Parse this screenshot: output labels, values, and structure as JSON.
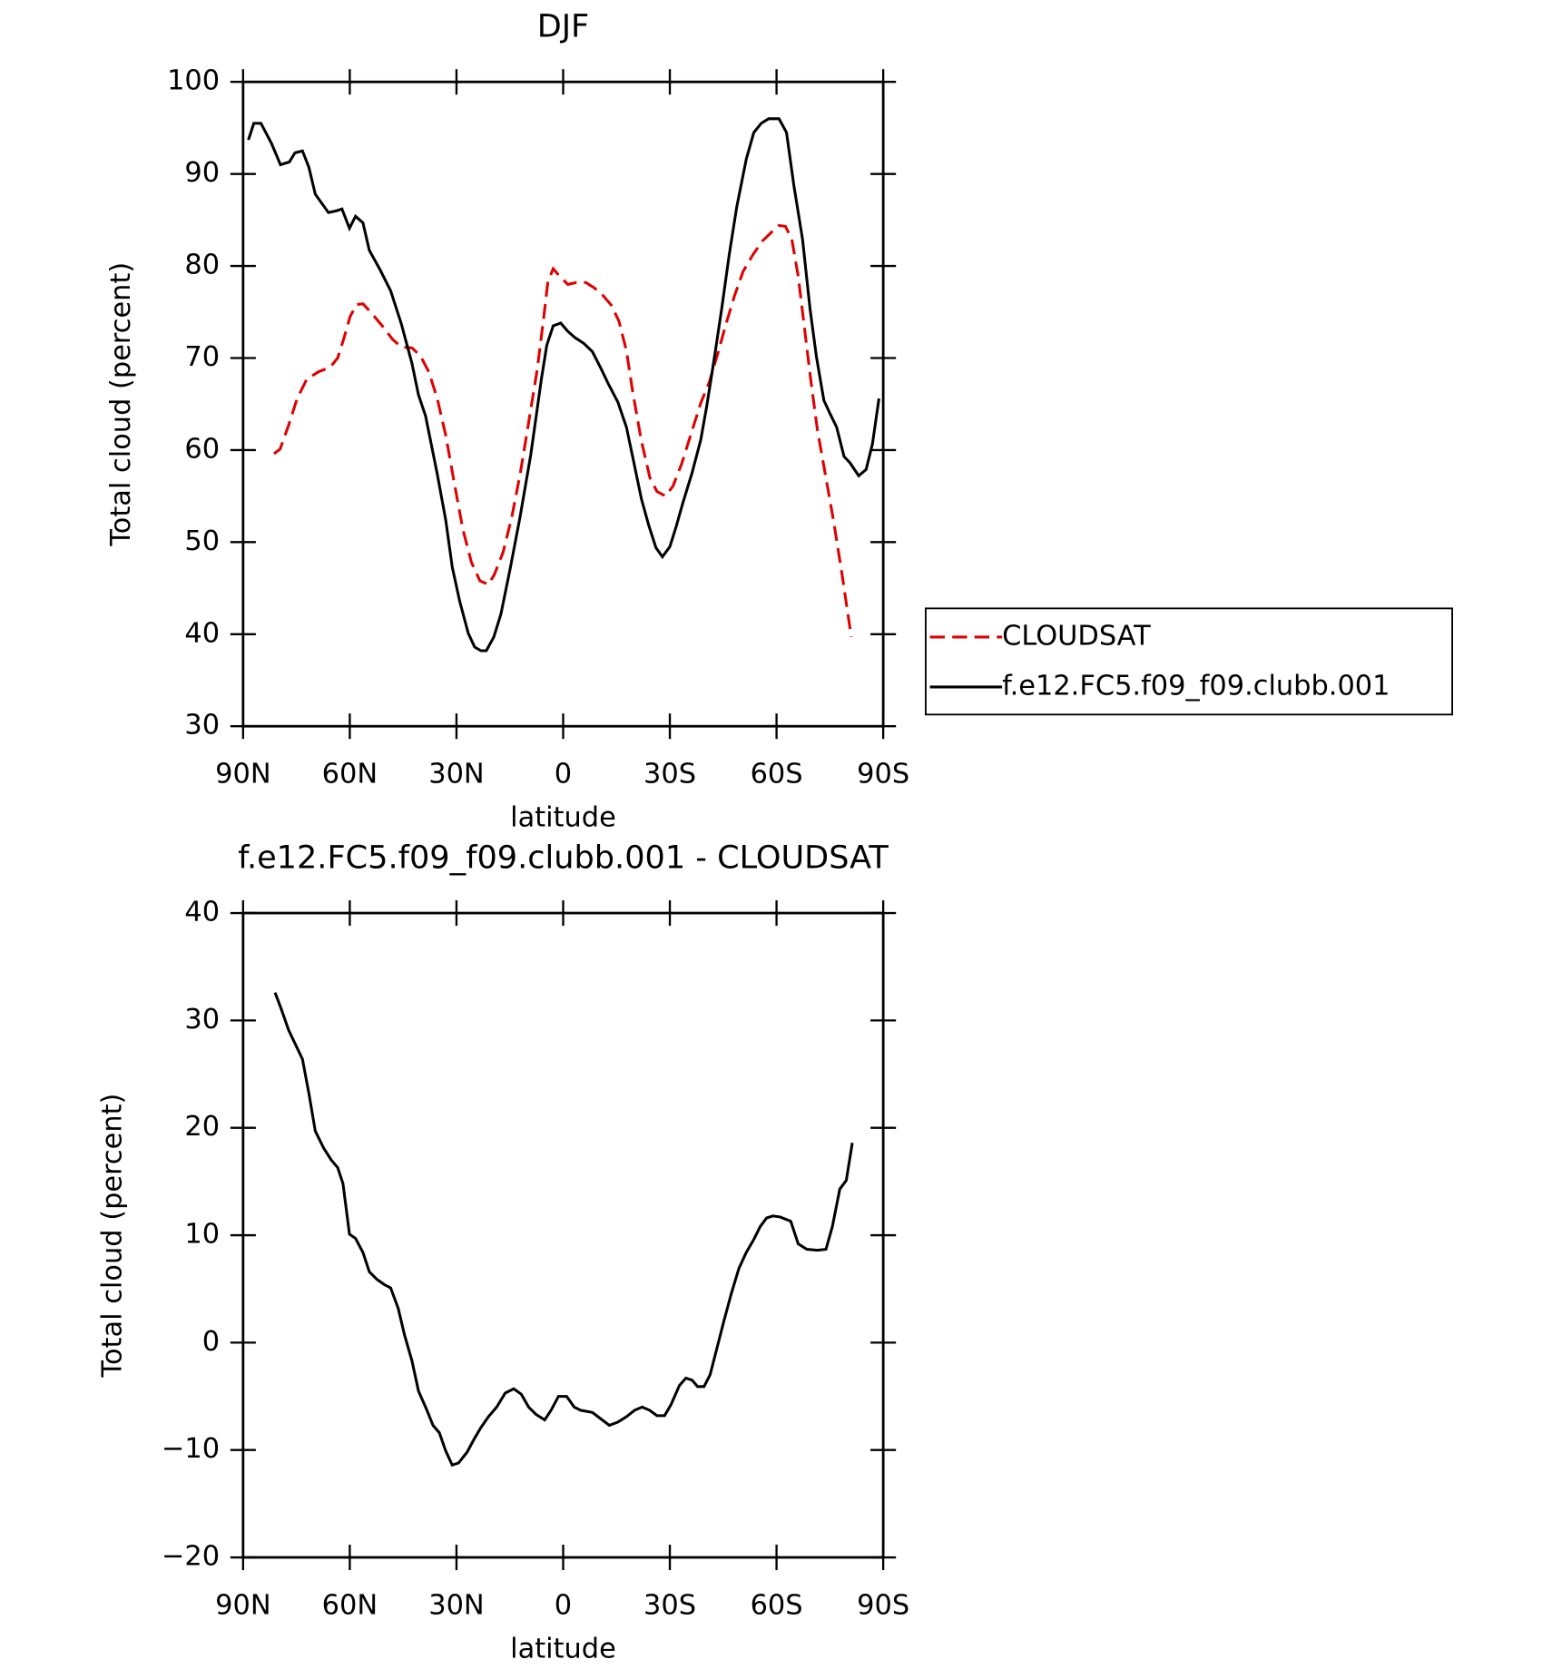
{
  "chart_data": [
    {
      "type": "line",
      "title": "DJF",
      "xlabel": "latitude",
      "ylabel": "Total cloud (percent)",
      "xlim": [
        90,
        -90
      ],
      "xticks": [
        {
          "value": 90,
          "label": "90N"
        },
        {
          "value": 60,
          "label": "60N"
        },
        {
          "value": 30,
          "label": "30N"
        },
        0,
        {
          "value": -30,
          "label": "30S"
        },
        {
          "value": -60,
          "label": "60S"
        },
        {
          "value": -90,
          "label": "90S"
        }
      ],
      "ylim": [
        30,
        100
      ],
      "yticks": [
        30,
        40,
        50,
        60,
        70,
        80,
        90,
        100
      ],
      "legend": "right",
      "series": [
        {
          "name": "CLOUDSAT",
          "color": "#e00000",
          "linestyle": "dashed",
          "x": [
            81.3,
            79.6,
            77.2,
            74.8,
            72.1,
            68.8,
            65.5,
            63.4,
            61.6,
            59.9,
            58.1,
            56.3,
            53.9,
            50.9,
            47.9,
            45.5,
            42.5,
            40.1,
            37.8,
            35.4,
            33,
            30.6,
            28.2,
            25.8,
            23.4,
            21,
            19.3,
            16.9,
            14.5,
            12.1,
            9.7,
            7.3,
            5.5,
            4.3,
            2.8,
            1,
            -1.3,
            -3.7,
            -6.4,
            -8.8,
            -11.2,
            -13.6,
            -15.7,
            -17.8,
            -19.6,
            -22,
            -24.4,
            -26.4,
            -28.8,
            -30.9,
            -33.3,
            -36,
            -38.7,
            -41.1,
            -43.5,
            -45.8,
            -48.2,
            -50.6,
            -53.3,
            -56,
            -58.7,
            -60.7,
            -62.5,
            -64.3,
            -66.1,
            -67.9,
            -69.7,
            -71.5,
            -73.6,
            -76,
            -78.4,
            -81
          ],
          "values": [
            59.6,
            60.1,
            62.7,
            65.6,
            67.7,
            68.5,
            69,
            70,
            72.2,
            74.5,
            75.8,
            75.9,
            74.9,
            73.5,
            72,
            71.2,
            71.1,
            70.2,
            68.5,
            65.6,
            61.6,
            56.4,
            51.4,
            47.8,
            45.8,
            45.4,
            46.5,
            48.9,
            52.6,
            57.4,
            63,
            68.7,
            74.3,
            78.3,
            79.7,
            78.9,
            78,
            78.2,
            78.2,
            77.6,
            76.8,
            75.7,
            74,
            70.8,
            66.2,
            61,
            57,
            55.5,
            55,
            56.1,
            58.5,
            61.8,
            65.1,
            67.4,
            70.5,
            73.7,
            76.8,
            79.4,
            81.2,
            82.7,
            83.7,
            84.4,
            84.3,
            82.9,
            78.9,
            73.1,
            67.4,
            62.2,
            57.6,
            52.4,
            46.6,
            39.7
          ]
        },
        {
          "name": "f.e12.FC5.f09_f09.clubb.001",
          "color": "#000000",
          "linestyle": "solid",
          "x": [
            88.5,
            87,
            85,
            82,
            79.5,
            77,
            75.4,
            73.3,
            71.5,
            69.7,
            66,
            63.7,
            62.2,
            60.1,
            58.4,
            56.3,
            54.5,
            51.5,
            48.5,
            45.5,
            42.5,
            40.7,
            38.7,
            35.4,
            33,
            31.2,
            29.1,
            26.7,
            24.9,
            23.1,
            21.6,
            19.5,
            17.5,
            14.8,
            12.1,
            9.1,
            6.1,
            4.6,
            2.8,
            0.7,
            -1.3,
            -3.4,
            -5.8,
            -8.2,
            -10.6,
            -12.7,
            -15.4,
            -17.8,
            -19.9,
            -22,
            -24.1,
            -26.1,
            -27.9,
            -30,
            -31.8,
            -33.6,
            -36.3,
            -38.7,
            -40.4,
            -42.5,
            -44.6,
            -46.7,
            -48.8,
            -51.5,
            -53.6,
            -55.7,
            -57.8,
            -60.7,
            -62.8,
            -64.9,
            -67.3,
            -69.4,
            -71.2,
            -73.3,
            -75.1,
            -76.9,
            -79,
            -80.7,
            -83.1,
            -85.2,
            -87,
            -88.8
          ],
          "values": [
            93.7,
            95.5,
            95.5,
            93.3,
            91,
            91.3,
            92.3,
            92.5,
            90.7,
            87.8,
            85.8,
            86,
            86.2,
            84.1,
            85.4,
            84.7,
            81.7,
            79.6,
            77.3,
            73.7,
            69.4,
            66,
            63.7,
            57.4,
            52.4,
            47.3,
            43.6,
            40.1,
            38.6,
            38.2,
            38.2,
            39.7,
            42.2,
            47.3,
            52.8,
            59.5,
            67.8,
            71.4,
            73.5,
            73.8,
            72.9,
            72.2,
            71.6,
            70.7,
            68.9,
            67.2,
            65.2,
            62.5,
            58.6,
            54.7,
            51.8,
            49.4,
            48.4,
            49.5,
            51.7,
            54.2,
            57.6,
            61.1,
            64.8,
            70,
            75.4,
            81.2,
            86.4,
            91.6,
            94.5,
            95.5,
            96,
            96,
            94.5,
            88.7,
            82.9,
            75.4,
            70.2,
            65.4,
            63.9,
            62.5,
            59.3,
            58.6,
            57.2,
            57.9,
            60.7,
            65.6
          ]
        }
      ]
    },
    {
      "type": "line",
      "title": "f.e12.FC5.f09_f09.clubb.001 - CLOUDSAT",
      "xlabel": "latitude",
      "ylabel": "Total cloud (percent)",
      "xlim": [
        90,
        -90
      ],
      "xticks": [
        {
          "value": 90,
          "label": "90N"
        },
        {
          "value": 60,
          "label": "60N"
        },
        {
          "value": 30,
          "label": "30N"
        },
        0,
        {
          "value": -30,
          "label": "30S"
        },
        {
          "value": -60,
          "label": "60S"
        },
        {
          "value": -90,
          "label": "90S"
        }
      ],
      "ylim": [
        -20,
        40
      ],
      "yticks": [
        {
          "value": -20,
          "label": "−20"
        },
        {
          "value": -10,
          "label": "−10"
        },
        0,
        10,
        20,
        30,
        40
      ],
      "series": [
        {
          "color": "#000000",
          "linestyle": "solid",
          "x": [
            81,
            79.3,
            77.2,
            73.3,
            71.5,
            69.7,
            67.3,
            65.2,
            63.4,
            61.9,
            60.1,
            58.4,
            56.3,
            54.5,
            52.4,
            50.3,
            48.5,
            46.4,
            44.6,
            42.5,
            40.7,
            38.3,
            36.6,
            34.8,
            33,
            31.2,
            29.4,
            27,
            24.9,
            23.1,
            21,
            18.7,
            16.3,
            13.9,
            11.8,
            9.7,
            7.6,
            5.2,
            3.4,
            1.3,
            -1,
            -3.1,
            -4.9,
            -8.2,
            -10.6,
            -13,
            -15.4,
            -17.8,
            -20.1,
            -22.2,
            -24.3,
            -26.4,
            -28.5,
            -30.3,
            -32.7,
            -34.5,
            -36.3,
            -37.8,
            -39.6,
            -41.3,
            -43.1,
            -45.2,
            -47.3,
            -49.4,
            -51.5,
            -53.6,
            -55.4,
            -57.2,
            -59,
            -61,
            -64,
            -66.1,
            -68.5,
            -71.5,
            -73.9,
            -75.7,
            -77.8,
            -79.6,
            -81.3
          ],
          "values": [
            32.6,
            31.1,
            29.1,
            26.4,
            23.2,
            19.7,
            18.1,
            17,
            16.3,
            14.8,
            10.1,
            9.7,
            8.4,
            6.6,
            5.9,
            5.4,
            5.1,
            3.2,
            0.7,
            -1.7,
            -4.5,
            -6.3,
            -7.7,
            -8.4,
            -10.1,
            -11.4,
            -11.2,
            -10.2,
            -8.9,
            -7.9,
            -6.9,
            -6,
            -4.7,
            -4.3,
            -4.8,
            -6,
            -6.7,
            -7.2,
            -6.3,
            -5,
            -5,
            -6,
            -6.3,
            -6.5,
            -7.1,
            -7.7,
            -7.4,
            -6.9,
            -6.3,
            -6,
            -6.3,
            -6.8,
            -6.8,
            -5.8,
            -4,
            -3.3,
            -3.5,
            -4.1,
            -4.1,
            -3,
            -0.7,
            2,
            4.6,
            6.9,
            8.4,
            9.6,
            10.8,
            11.6,
            11.8,
            11.7,
            11.3,
            9.2,
            8.7,
            8.6,
            8.7,
            10.8,
            14.3,
            15.1,
            18.6
          ]
        }
      ]
    }
  ]
}
